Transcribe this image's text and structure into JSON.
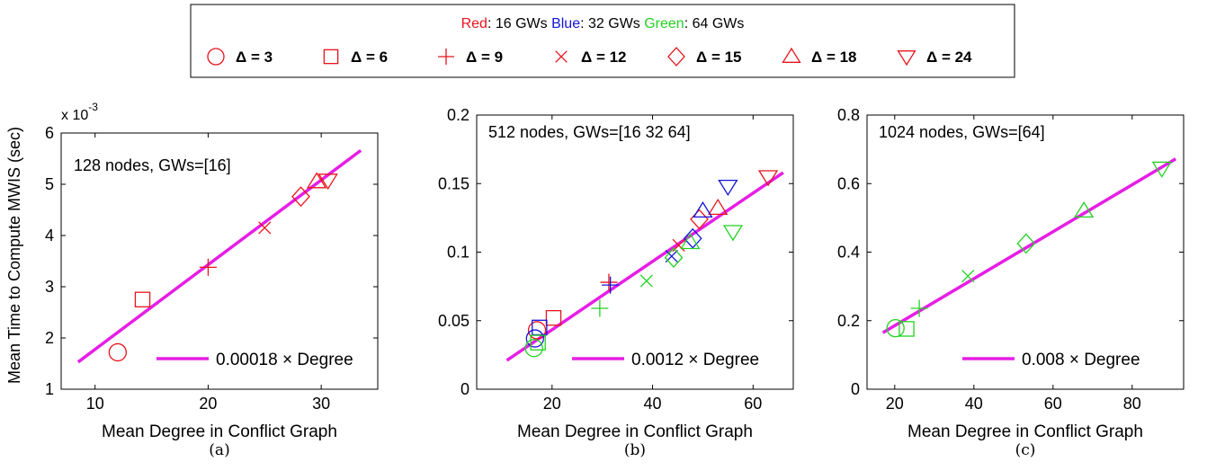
{
  "legend": {
    "color_key": [
      {
        "color_word": "Red",
        "color": "#e8141c",
        "text": ": 16 GWs "
      },
      {
        "color_word": "Blue",
        "color": "#1414d8",
        "text": ": 32 GWs "
      },
      {
        "color_word": "Green",
        "color": "#22d222",
        "text": ": 64 GWs"
      }
    ],
    "marker_entries": [
      {
        "marker": "circle",
        "label": "Δ = 3"
      },
      {
        "marker": "square",
        "label": "Δ = 6"
      },
      {
        "marker": "plus",
        "label": "Δ = 9"
      },
      {
        "marker": "x",
        "label": "Δ = 12"
      },
      {
        "marker": "diamond",
        "label": "Δ = 15"
      },
      {
        "marker": "triangle-up",
        "label": "Δ = 18"
      },
      {
        "marker": "triangle-down",
        "label": "Δ = 24"
      }
    ]
  },
  "shared_ylabel": "Mean Time to Compute MWIS (sec)",
  "colors": {
    "red": "#e8141c",
    "blue": "#1414d8",
    "green": "#22d222",
    "fit": "#e61ee6",
    "axis": "#000000"
  },
  "chart_data": [
    {
      "type": "scatter",
      "caption": "(a)",
      "annotation": "128 nodes, GWs=[16]",
      "xlabel": "Mean Degree in Conflict Graph",
      "ylabel": "Mean Time to Compute MWIS (sec)",
      "y_multiplier_label": "x 10",
      "y_multiplier_exponent": "-3",
      "xlim": [
        7,
        35
      ],
      "ylim": [
        1,
        6
      ],
      "xticks": [
        10,
        20,
        30
      ],
      "yticks": [
        1,
        2,
        3,
        4,
        5,
        6
      ],
      "xtick_labels": [
        "10",
        "20",
        "30"
      ],
      "ytick_labels": [
        "1",
        "2",
        "3",
        "4",
        "5",
        "6"
      ],
      "fit_line": {
        "label": "0.00018 × Degree",
        "x": [
          8.5,
          33.5
        ],
        "y": [
          1.53,
          5.66
        ]
      },
      "series": [
        {
          "color": "red",
          "marker": "circle",
          "x": [
            12
          ],
          "y": [
            1.72
          ]
        },
        {
          "color": "red",
          "marker": "square",
          "x": [
            14.2
          ],
          "y": [
            2.75
          ]
        },
        {
          "color": "red",
          "marker": "plus",
          "x": [
            20
          ],
          "y": [
            3.38
          ]
        },
        {
          "color": "red",
          "marker": "x",
          "x": [
            25
          ],
          "y": [
            4.15
          ]
        },
        {
          "color": "red",
          "marker": "diamond",
          "x": [
            28.2
          ],
          "y": [
            4.76
          ]
        },
        {
          "color": "red",
          "marker": "triangle-up",
          "x": [
            29.6
          ],
          "y": [
            5.05
          ]
        },
        {
          "color": "red",
          "marker": "triangle-down",
          "x": [
            30.6
          ],
          "y": [
            5.08
          ]
        }
      ]
    },
    {
      "type": "scatter",
      "caption": "(b)",
      "annotation": "512 nodes, GWs=[16 32 64]",
      "xlabel": "Mean Degree in Conflict Graph",
      "ylabel": "",
      "xlim": [
        5,
        68
      ],
      "ylim": [
        0,
        0.2
      ],
      "xticks": [
        20,
        40,
        60
      ],
      "yticks": [
        0,
        0.05,
        0.1,
        0.15,
        0.2
      ],
      "xtick_labels": [
        "20",
        "40",
        "60"
      ],
      "ytick_labels": [
        "0",
        "0.05",
        "0.1",
        "0.15",
        "0.2"
      ],
      "fit_line": {
        "label": "0.0012 × Degree",
        "x": [
          11,
          66
        ],
        "y": [
          0.021,
          0.158
        ]
      },
      "series": [
        {
          "color": "red",
          "marker": "circle",
          "x": [
            17
          ],
          "y": [
            0.043
          ]
        },
        {
          "color": "red",
          "marker": "square",
          "x": [
            20.3
          ],
          "y": [
            0.052
          ]
        },
        {
          "color": "red",
          "marker": "plus",
          "x": [
            31.3
          ],
          "y": [
            0.078
          ]
        },
        {
          "color": "red",
          "marker": "x",
          "x": [
            45.2
          ],
          "y": [
            0.105
          ]
        },
        {
          "color": "red",
          "marker": "diamond",
          "x": [
            49.3
          ],
          "y": [
            0.124
          ]
        },
        {
          "color": "red",
          "marker": "triangle-up",
          "x": [
            53
          ],
          "y": [
            0.132
          ]
        },
        {
          "color": "red",
          "marker": "triangle-down",
          "x": [
            63
          ],
          "y": [
            0.155
          ]
        },
        {
          "color": "blue",
          "marker": "circle",
          "x": [
            16.6
          ],
          "y": [
            0.037
          ]
        },
        {
          "color": "blue",
          "marker": "square",
          "x": [
            17.5
          ],
          "y": [
            0.045
          ]
        },
        {
          "color": "blue",
          "marker": "plus",
          "x": [
            31.6
          ],
          "y": [
            0.076
          ]
        },
        {
          "color": "blue",
          "marker": "x",
          "x": [
            43.8
          ],
          "y": [
            0.097
          ]
        },
        {
          "color": "blue",
          "marker": "diamond",
          "x": [
            48
          ],
          "y": [
            0.11
          ]
        },
        {
          "color": "blue",
          "marker": "triangle-up",
          "x": [
            50
          ],
          "y": [
            0.13
          ]
        },
        {
          "color": "blue",
          "marker": "triangle-down",
          "x": [
            55
          ],
          "y": [
            0.148
          ]
        },
        {
          "color": "green",
          "marker": "circle",
          "x": [
            16.4
          ],
          "y": [
            0.03
          ]
        },
        {
          "color": "green",
          "marker": "square",
          "x": [
            17.2
          ],
          "y": [
            0.034
          ]
        },
        {
          "color": "green",
          "marker": "plus",
          "x": [
            29.5
          ],
          "y": [
            0.059
          ]
        },
        {
          "color": "green",
          "marker": "x",
          "x": [
            38.8
          ],
          "y": [
            0.079
          ]
        },
        {
          "color": "green",
          "marker": "diamond",
          "x": [
            44.2
          ],
          "y": [
            0.096
          ]
        },
        {
          "color": "green",
          "marker": "triangle-up",
          "x": [
            47.5
          ],
          "y": [
            0.107
          ]
        },
        {
          "color": "green",
          "marker": "triangle-down",
          "x": [
            56
          ],
          "y": [
            0.115
          ]
        }
      ]
    },
    {
      "type": "scatter",
      "caption": "(c)",
      "annotation": "1024 nodes, GWs=[64]",
      "xlabel": "Mean Degree in Conflict Graph",
      "ylabel": "",
      "xlim": [
        13,
        93
      ],
      "ylim": [
        0,
        0.8
      ],
      "xticks": [
        20,
        40,
        60,
        80
      ],
      "yticks": [
        0,
        0.2,
        0.4,
        0.6,
        0.8
      ],
      "xtick_labels": [
        "20",
        "40",
        "60",
        "80"
      ],
      "ytick_labels": [
        "0",
        "0.2",
        "0.4",
        "0.6",
        "0.8"
      ],
      "fit_line": {
        "label": "0.008 × Degree",
        "x": [
          17,
          91
        ],
        "y": [
          0.165,
          0.672
        ]
      },
      "series": [
        {
          "color": "green",
          "marker": "circle",
          "x": [
            20.2
          ],
          "y": [
            0.178
          ]
        },
        {
          "color": "green",
          "marker": "square",
          "x": [
            23
          ],
          "y": [
            0.176
          ]
        },
        {
          "color": "green",
          "marker": "plus",
          "x": [
            26.2
          ],
          "y": [
            0.236
          ]
        },
        {
          "color": "green",
          "marker": "x",
          "x": [
            38.5
          ],
          "y": [
            0.33
          ]
        },
        {
          "color": "green",
          "marker": "diamond",
          "x": [
            53.2
          ],
          "y": [
            0.425
          ]
        },
        {
          "color": "green",
          "marker": "triangle-up",
          "x": [
            67.8
          ],
          "y": [
            0.52
          ]
        },
        {
          "color": "green",
          "marker": "triangle-down",
          "x": [
            87.5
          ],
          "y": [
            0.645
          ]
        }
      ]
    }
  ]
}
